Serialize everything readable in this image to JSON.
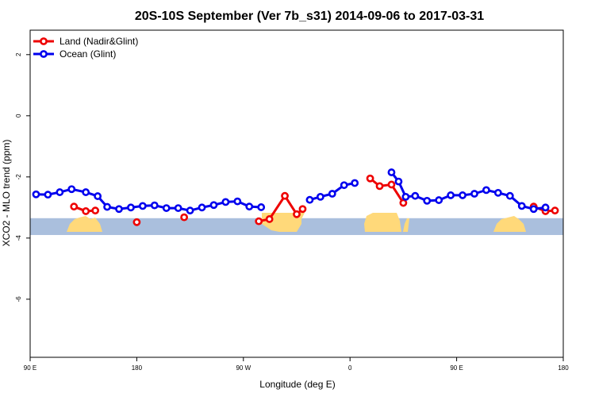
{
  "chart_data": {
    "type": "line",
    "title": "20S-10S September (Ver 7b_s31)   2014-09-06 to 2017-03-31",
    "xlabel": "Longitude (deg E)",
    "ylabel": "XCO2 - MLO trend (ppm)",
    "xlim": [
      90,
      540
    ],
    "ylim": [
      -7.9,
      2.8
    ],
    "xticks": [
      {
        "value": 90,
        "label": "90 E"
      },
      {
        "value": 180,
        "label": "180"
      },
      {
        "value": 270,
        "label": "90 W"
      },
      {
        "value": 360,
        "label": "0"
      },
      {
        "value": 450,
        "label": "90 E"
      },
      {
        "value": 540,
        "label": "180"
      }
    ],
    "yticks": [
      {
        "value": 2,
        "label": "2"
      },
      {
        "value": 0,
        "label": "0"
      },
      {
        "value": -2,
        "label": "-2"
      },
      {
        "value": -4,
        "label": "-4"
      },
      {
        "value": -6,
        "label": "-6"
      }
    ],
    "legend": {
      "position": "top-left"
    },
    "land_band": {
      "ymin": -3.9,
      "ymax": -3.35,
      "ocean_color": "#aabfdd",
      "land_color": "#ffd97a"
    },
    "series": [
      {
        "name": "Land (Nadir&Glint)",
        "color": "#ee0000",
        "segments": [
          [
            [
              127,
              -2.97
            ],
            [
              137,
              -3.12
            ],
            [
              145,
              -3.1
            ]
          ],
          [
            [
              180,
              -3.48
            ]
          ],
          [
            [
              220,
              -3.32
            ]
          ],
          [
            [
              283,
              -3.45
            ],
            [
              292,
              -3.38
            ],
            [
              305,
              -2.62
            ],
            [
              315,
              -3.22
            ],
            [
              320,
              -3.05
            ]
          ],
          [
            [
              377,
              -2.05
            ],
            [
              385,
              -2.3
            ],
            [
              395,
              -2.25
            ],
            [
              405,
              -2.85
            ]
          ],
          [
            [
              515,
              -2.97
            ],
            [
              525,
              -3.12
            ],
            [
              533,
              -3.1
            ]
          ]
        ]
      },
      {
        "name": "Ocean (Glint)",
        "color": "#0000ee",
        "segments": [
          [
            [
              95,
              -2.57
            ],
            [
              105,
              -2.58
            ],
            [
              115,
              -2.5
            ],
            [
              125,
              -2.4
            ],
            [
              137,
              -2.5
            ],
            [
              147,
              -2.63
            ],
            [
              155,
              -2.98
            ],
            [
              165,
              -3.05
            ],
            [
              175,
              -3.0
            ],
            [
              185,
              -2.95
            ],
            [
              195,
              -2.93
            ],
            [
              205,
              -3.02
            ],
            [
              215,
              -3.02
            ],
            [
              225,
              -3.1
            ],
            [
              235,
              -3.0
            ],
            [
              245,
              -2.92
            ],
            [
              255,
              -2.82
            ],
            [
              265,
              -2.8
            ],
            [
              275,
              -2.97
            ],
            [
              285,
              -2.99
            ]
          ],
          [
            [
              326,
              -2.75
            ],
            [
              335,
              -2.65
            ],
            [
              345,
              -2.55
            ],
            [
              355,
              -2.27
            ],
            [
              364,
              -2.2
            ]
          ],
          [
            [
              395,
              -1.85
            ],
            [
              401,
              -2.15
            ],
            [
              407,
              -2.65
            ],
            [
              415,
              -2.62
            ],
            [
              425,
              -2.78
            ],
            [
              435,
              -2.76
            ],
            [
              445,
              -2.6
            ],
            [
              455,
              -2.6
            ],
            [
              465,
              -2.55
            ],
            [
              475,
              -2.43
            ],
            [
              485,
              -2.52
            ],
            [
              495,
              -2.62
            ],
            [
              505,
              -2.95
            ],
            [
              515,
              -3.05
            ],
            [
              525,
              -3.0
            ]
          ]
        ]
      }
    ]
  }
}
